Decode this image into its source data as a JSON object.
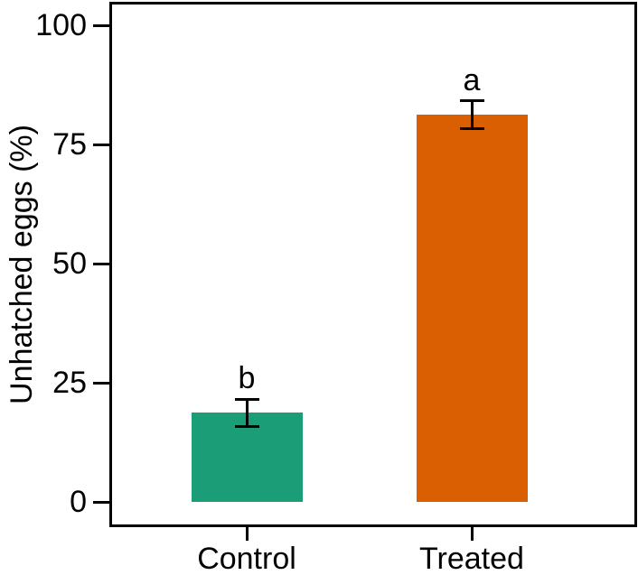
{
  "figure": {
    "kind": "bar chart with error bars and significance letters"
  },
  "chart_data": {
    "type": "bar",
    "title": "",
    "xlabel": "",
    "ylabel": "Unhatched eggs (%)",
    "categories": [
      "Control",
      "Treated"
    ],
    "values": [
      18.7,
      81.2
    ],
    "errors": [
      2.8,
      2.9
    ],
    "significance_letters": [
      "b",
      "a"
    ],
    "bar_colors": [
      "#1b9e77",
      "#d95f02"
    ],
    "error_bar_color": "#000000",
    "axis_color": "#000000",
    "yticks": [
      0,
      25,
      50,
      75,
      100
    ],
    "ylim": [
      0,
      104.8
    ],
    "grid": false,
    "legend": false
  }
}
